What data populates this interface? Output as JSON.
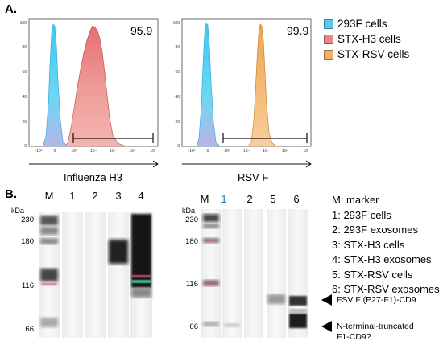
{
  "panelA": {
    "label": "A.",
    "histograms": [
      {
        "xlabel": "Influenza H3",
        "percent": "95.9"
      },
      {
        "xlabel": "RSV F",
        "percent": "99.9"
      }
    ],
    "y_ticks": [
      "100",
      "80",
      "60",
      "40",
      "20",
      "0"
    ],
    "x_ticks": [
      "-10³",
      "0",
      "10³",
      "10⁴",
      "10⁵",
      "10⁶",
      "10⁷"
    ],
    "legend": [
      {
        "label": "293F cells",
        "color": "#5bc8ee"
      },
      {
        "label": "STX-H3 cells",
        "color": "#e8868a"
      },
      {
        "label": "STX-RSV cells",
        "color": "#f0b06a"
      }
    ]
  },
  "panelB": {
    "label": "B.",
    "kda": "kDa",
    "blot1": {
      "lanes": [
        "M",
        "1",
        "2",
        "3",
        "4"
      ],
      "mw": [
        "230",
        "180",
        "116",
        "66"
      ]
    },
    "blot2": {
      "lanes": [
        "M",
        "1",
        "2",
        "5",
        "6"
      ],
      "mw": [
        "230",
        "180",
        "116",
        "66"
      ]
    },
    "key": [
      "M: marker",
      "1: 293F cells",
      "2: 293F exosomes",
      "3: STX-H3 cells",
      "4: STX-H3 exosomes",
      "5: STX-RSV cells",
      "6: STX-RSV exosomes"
    ],
    "annotations": [
      {
        "line1": "FSV F (P27-F1)-CD9",
        "line2": ""
      },
      {
        "line1": "N-terminal-truncated",
        "line2": "F1-CD9?"
      }
    ]
  },
  "colors": {
    "blue": "#5bc8ee",
    "red": "#e8868a",
    "orange": "#f0b06a"
  }
}
